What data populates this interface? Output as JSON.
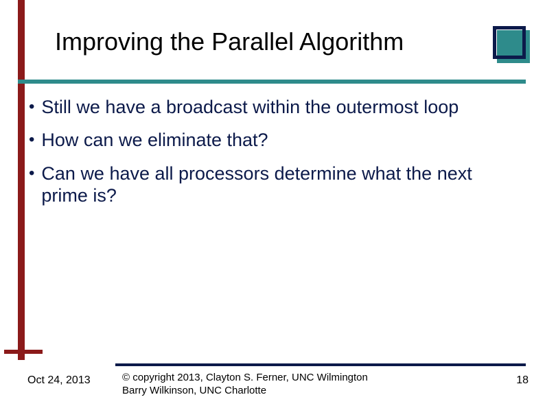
{
  "title": "Improving the Parallel Algorithm",
  "bullets": [
    "Still we have a broadcast within the outermost loop",
    "How can we eliminate that?",
    "Can we have all processors determine what the next prime is?"
  ],
  "footer": {
    "date": "Oct 24, 2013",
    "copyright_line1": "© copyright 2013, Clayton S. Ferner, UNC Wilmington",
    "copyright_line2": "Barry Wilkinson, UNC Charlotte",
    "page": "18"
  },
  "colors": {
    "accent_red": "#8b1a1a",
    "accent_teal": "#2e8b8b",
    "text_navy": "#0c1a4a",
    "background": "#ffffff"
  }
}
